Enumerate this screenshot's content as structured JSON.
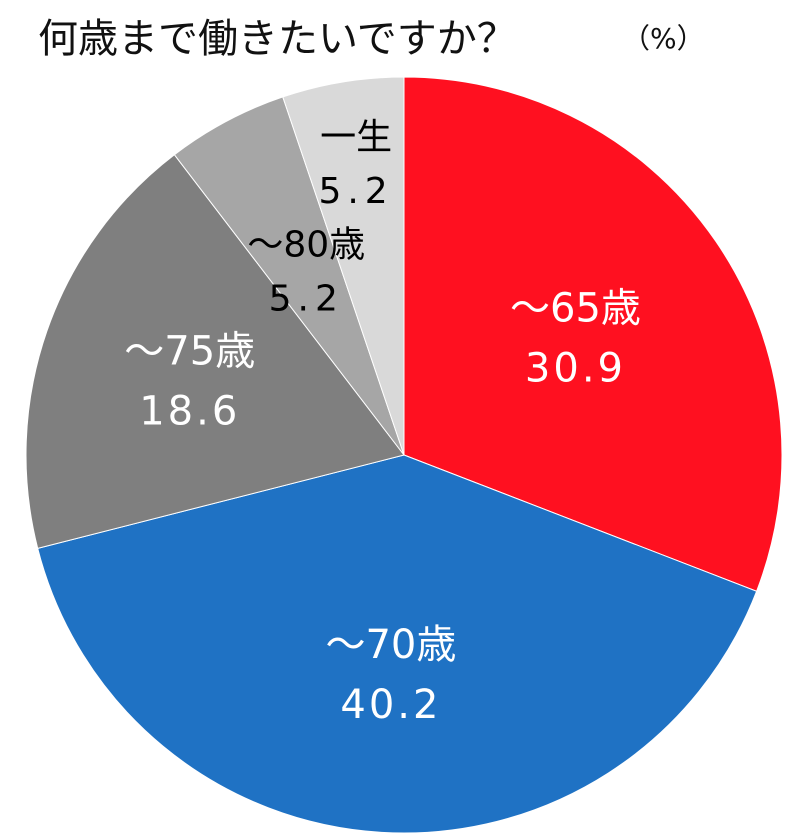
{
  "chart_data": {
    "type": "pie",
    "title": "何歳まで働きたいですか？",
    "unit": "（%）",
    "start_angle_deg": 0,
    "direction": "clockwise",
    "slices": [
      {
        "label": "～65歳",
        "value": 30.9,
        "value_text": "30.9",
        "color": "#ff1020",
        "text_color": "#ffffff"
      },
      {
        "label": "～70歳",
        "value": 40.2,
        "value_text": "40.2",
        "color": "#1f72c4",
        "text_color": "#ffffff"
      },
      {
        "label": "～75歳",
        "value": 18.6,
        "value_text": "18.6",
        "color": "#7f7f7f",
        "text_color": "#ffffff"
      },
      {
        "label": "～80歳",
        "value": 5.2,
        "value_text": "5.2",
        "color": "#a6a6a6",
        "text_color": "#000000"
      },
      {
        "label": "一生",
        "value": 5.2,
        "value_text": "5.2",
        "color": "#d9d9d9",
        "text_color": "#000000"
      }
    ]
  }
}
